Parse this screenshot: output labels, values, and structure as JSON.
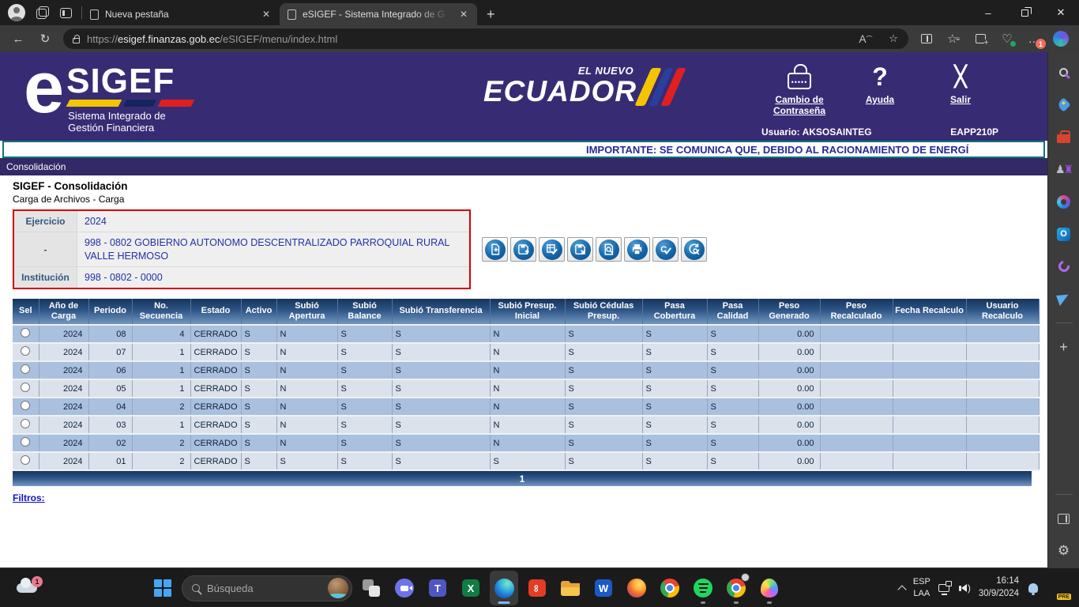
{
  "browser": {
    "tabs": [
      {
        "title": "Nueva pestaña"
      },
      {
        "title": "eSIGEF - Sistema Integrado de G"
      }
    ],
    "url": {
      "scheme": "https://",
      "host": "esigef.finanzas.gob.ec",
      "path": "/eSIGEF/menu/index.html"
    },
    "more_badge": "1"
  },
  "header": {
    "logo": {
      "mark": "e",
      "name": "SIGEF",
      "tagline1": "Sistema Integrado de",
      "tagline2": "Gestión Financiera"
    },
    "ecuador": {
      "top": "EL NUEVO",
      "name": "ECUADOR"
    },
    "actions": [
      {
        "label": "Cambio de Contraseña"
      },
      {
        "label": "Ayuda"
      },
      {
        "label": "Salir"
      }
    ],
    "user": "Usuario: AKSOSAINTEG",
    "app_code": "EAPP210P"
  },
  "marquee": {
    "text": "IMPORTANTE: SE COMUNICA QUE, DEBIDO AL RACIONAMIENTO DE ENERGÍ"
  },
  "menu": {
    "items": [
      {
        "label": "Consolidación"
      }
    ]
  },
  "page": {
    "title": "SIGEF - Consolidación",
    "subtitle": "Carga de Archivos - Carga"
  },
  "form": {
    "rows": [
      {
        "label": "Ejercicio",
        "value": "2024"
      },
      {
        "label": "-",
        "value": "998 - 0802 GOBIERNO AUTONOMO DESCENTRALIZADO PARROQUIAL RURAL VALLE HERMOSO"
      },
      {
        "label": "Institución",
        "value": "998 - 0802 - 0000"
      }
    ]
  },
  "toolbar": {
    "buttons": [
      "new-document",
      "save-record",
      "validate-grid",
      "delete-record",
      "preview-document",
      "print",
      "quality-check",
      "refresh-search"
    ]
  },
  "table": {
    "columns": [
      "Sel",
      "Año de Carga",
      "Periodo",
      "No. Secuencia",
      "Estado",
      "Activo",
      "Subió Apertura",
      "Subió Balance",
      "Subió Transferencia",
      "Subió Presup. Inicial",
      "Subió Cédulas Presup.",
      "Pasa Cobertura",
      "Pasa Calidad",
      "Peso Generado",
      "Peso Recalculado",
      "Fecha Recalculo",
      "Usuario Recalculo"
    ],
    "rows": [
      [
        "2024",
        "08",
        "4",
        "CERRADO",
        "S",
        "N",
        "S",
        "S",
        "N",
        "S",
        "S",
        "S",
        "0.00",
        "",
        "",
        ""
      ],
      [
        "2024",
        "07",
        "1",
        "CERRADO",
        "S",
        "N",
        "S",
        "S",
        "N",
        "S",
        "S",
        "S",
        "0.00",
        "",
        "",
        ""
      ],
      [
        "2024",
        "06",
        "1",
        "CERRADO",
        "S",
        "N",
        "S",
        "S",
        "N",
        "S",
        "S",
        "S",
        "0.00",
        "",
        "",
        ""
      ],
      [
        "2024",
        "05",
        "1",
        "CERRADO",
        "S",
        "N",
        "S",
        "S",
        "N",
        "S",
        "S",
        "S",
        "0.00",
        "",
        "",
        ""
      ],
      [
        "2024",
        "04",
        "2",
        "CERRADO",
        "S",
        "N",
        "S",
        "S",
        "N",
        "S",
        "S",
        "S",
        "0.00",
        "",
        "",
        ""
      ],
      [
        "2024",
        "03",
        "1",
        "CERRADO",
        "S",
        "N",
        "S",
        "S",
        "N",
        "S",
        "S",
        "S",
        "0.00",
        "",
        "",
        ""
      ],
      [
        "2024",
        "02",
        "2",
        "CERRADO",
        "S",
        "N",
        "S",
        "S",
        "N",
        "S",
        "S",
        "S",
        "0.00",
        "",
        "",
        ""
      ],
      [
        "2024",
        "01",
        "2",
        "CERRADO",
        "S",
        "S",
        "S",
        "S",
        "S",
        "S",
        "S",
        "S",
        "0.00",
        "",
        "",
        ""
      ]
    ],
    "page": "1"
  },
  "filters": {
    "label": "Filtros:"
  },
  "sidebar": {
    "top": [
      "search",
      "shopping",
      "toolbox",
      "games",
      "microsoft-365",
      "outlook",
      "drop",
      "paper-plane"
    ],
    "mid": [
      "add"
    ],
    "bottom": [
      "sidebar-panel",
      "settings"
    ]
  },
  "taskbar": {
    "weather_badge": "1",
    "search_placeholder": "Búsqueda",
    "apps": [
      {
        "name": "task-view"
      },
      {
        "name": "video-call"
      },
      {
        "name": "teams"
      },
      {
        "name": "excel"
      },
      {
        "name": "edge",
        "active": true
      },
      {
        "name": "acrobat"
      },
      {
        "name": "file-explorer"
      },
      {
        "name": "word"
      },
      {
        "name": "firefox"
      },
      {
        "name": "chrome"
      },
      {
        "name": "spotify",
        "dot": true
      },
      {
        "name": "chrome-work",
        "dot": true
      },
      {
        "name": "rainbow-app",
        "dot": true
      }
    ],
    "lang": [
      "ESP",
      "LAA"
    ],
    "clock": {
      "time": "16:14",
      "date": "30/9/2024"
    },
    "copilot_badge": "PRE"
  }
}
